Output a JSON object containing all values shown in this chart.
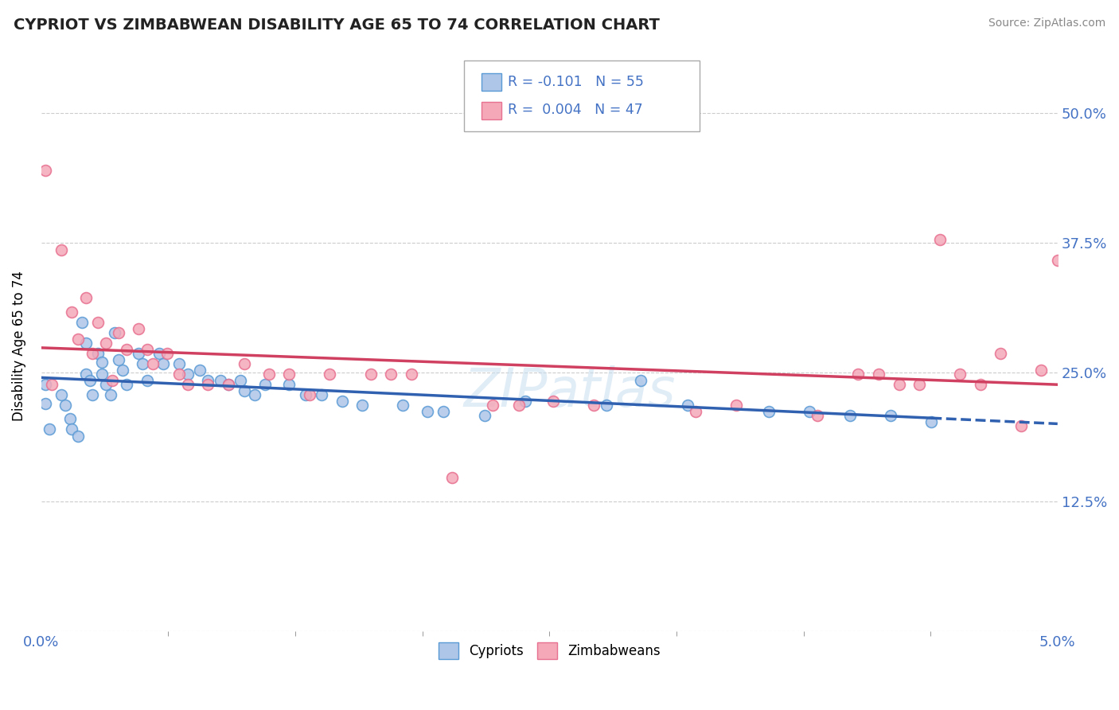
{
  "title": "CYPRIOT VS ZIMBABWEAN DISABILITY AGE 65 TO 74 CORRELATION CHART",
  "source_text": "Source: ZipAtlas.com",
  "ylabel": "Disability Age 65 to 74",
  "xlim": [
    0.0,
    0.05
  ],
  "ylim": [
    0.0,
    0.55
  ],
  "yticks": [
    0.0,
    0.125,
    0.25,
    0.375,
    0.5
  ],
  "ytick_labels": [
    "",
    "12.5%",
    "25.0%",
    "37.5%",
    "50.0%"
  ],
  "xtick_labels": [
    "0.0%",
    "5.0%"
  ],
  "grid_color": "#cccccc",
  "background_color": "#ffffff",
  "cypriot_color": "#aec6e8",
  "zimbabwean_color": "#f4a8b8",
  "cypriot_edge_color": "#5b9bd5",
  "zimbabwean_edge_color": "#e87090",
  "trend_blue": "#3060b0",
  "trend_pink": "#d04060",
  "R_cypriot": -0.101,
  "N_cypriot": 55,
  "R_zimbabwean": 0.004,
  "N_zimbabwean": 47,
  "legend_label_1": "Cypriots",
  "legend_label_2": "Zimbabweans",
  "cypriot_x": [
    0.0002,
    0.0002,
    0.0004,
    0.001,
    0.0012,
    0.0014,
    0.0015,
    0.0018,
    0.002,
    0.0022,
    0.0022,
    0.0024,
    0.0025,
    0.0028,
    0.003,
    0.003,
    0.0032,
    0.0034,
    0.0036,
    0.0038,
    0.004,
    0.0042,
    0.0048,
    0.005,
    0.0052,
    0.0058,
    0.006,
    0.0068,
    0.0072,
    0.0078,
    0.0082,
    0.0088,
    0.0092,
    0.0098,
    0.01,
    0.0105,
    0.011,
    0.0122,
    0.013,
    0.0138,
    0.0148,
    0.0158,
    0.0178,
    0.019,
    0.0198,
    0.0218,
    0.0238,
    0.0278,
    0.0295,
    0.0318,
    0.0358,
    0.0378,
    0.0398,
    0.0418,
    0.0438
  ],
  "cypriot_y": [
    0.238,
    0.22,
    0.195,
    0.228,
    0.218,
    0.205,
    0.195,
    0.188,
    0.298,
    0.278,
    0.248,
    0.242,
    0.228,
    0.268,
    0.26,
    0.248,
    0.238,
    0.228,
    0.288,
    0.262,
    0.252,
    0.238,
    0.268,
    0.258,
    0.242,
    0.268,
    0.258,
    0.258,
    0.248,
    0.252,
    0.242,
    0.242,
    0.238,
    0.242,
    0.232,
    0.228,
    0.238,
    0.238,
    0.228,
    0.228,
    0.222,
    0.218,
    0.218,
    0.212,
    0.212,
    0.208,
    0.222,
    0.218,
    0.242,
    0.218,
    0.212,
    0.212,
    0.208,
    0.208,
    0.202
  ],
  "zimbabwean_x": [
    0.0002,
    0.0005,
    0.001,
    0.0015,
    0.0018,
    0.0022,
    0.0025,
    0.0028,
    0.0032,
    0.0035,
    0.0038,
    0.0042,
    0.0048,
    0.0052,
    0.0055,
    0.0062,
    0.0068,
    0.0072,
    0.0082,
    0.0092,
    0.01,
    0.0112,
    0.0122,
    0.0132,
    0.0142,
    0.0162,
    0.0172,
    0.0182,
    0.0202,
    0.0222,
    0.0235,
    0.0252,
    0.0272,
    0.0322,
    0.0342,
    0.0382,
    0.0402,
    0.0412,
    0.0422,
    0.0432,
    0.0442,
    0.0452,
    0.0462,
    0.0472,
    0.0482,
    0.0492,
    0.05
  ],
  "zimbabwean_y": [
    0.445,
    0.238,
    0.368,
    0.308,
    0.282,
    0.322,
    0.268,
    0.298,
    0.278,
    0.242,
    0.288,
    0.272,
    0.292,
    0.272,
    0.258,
    0.268,
    0.248,
    0.238,
    0.238,
    0.238,
    0.258,
    0.248,
    0.248,
    0.228,
    0.248,
    0.248,
    0.248,
    0.248,
    0.148,
    0.218,
    0.218,
    0.222,
    0.218,
    0.212,
    0.218,
    0.208,
    0.248,
    0.248,
    0.238,
    0.238,
    0.378,
    0.248,
    0.238,
    0.268,
    0.198,
    0.252,
    0.358
  ],
  "marker_size": 100
}
